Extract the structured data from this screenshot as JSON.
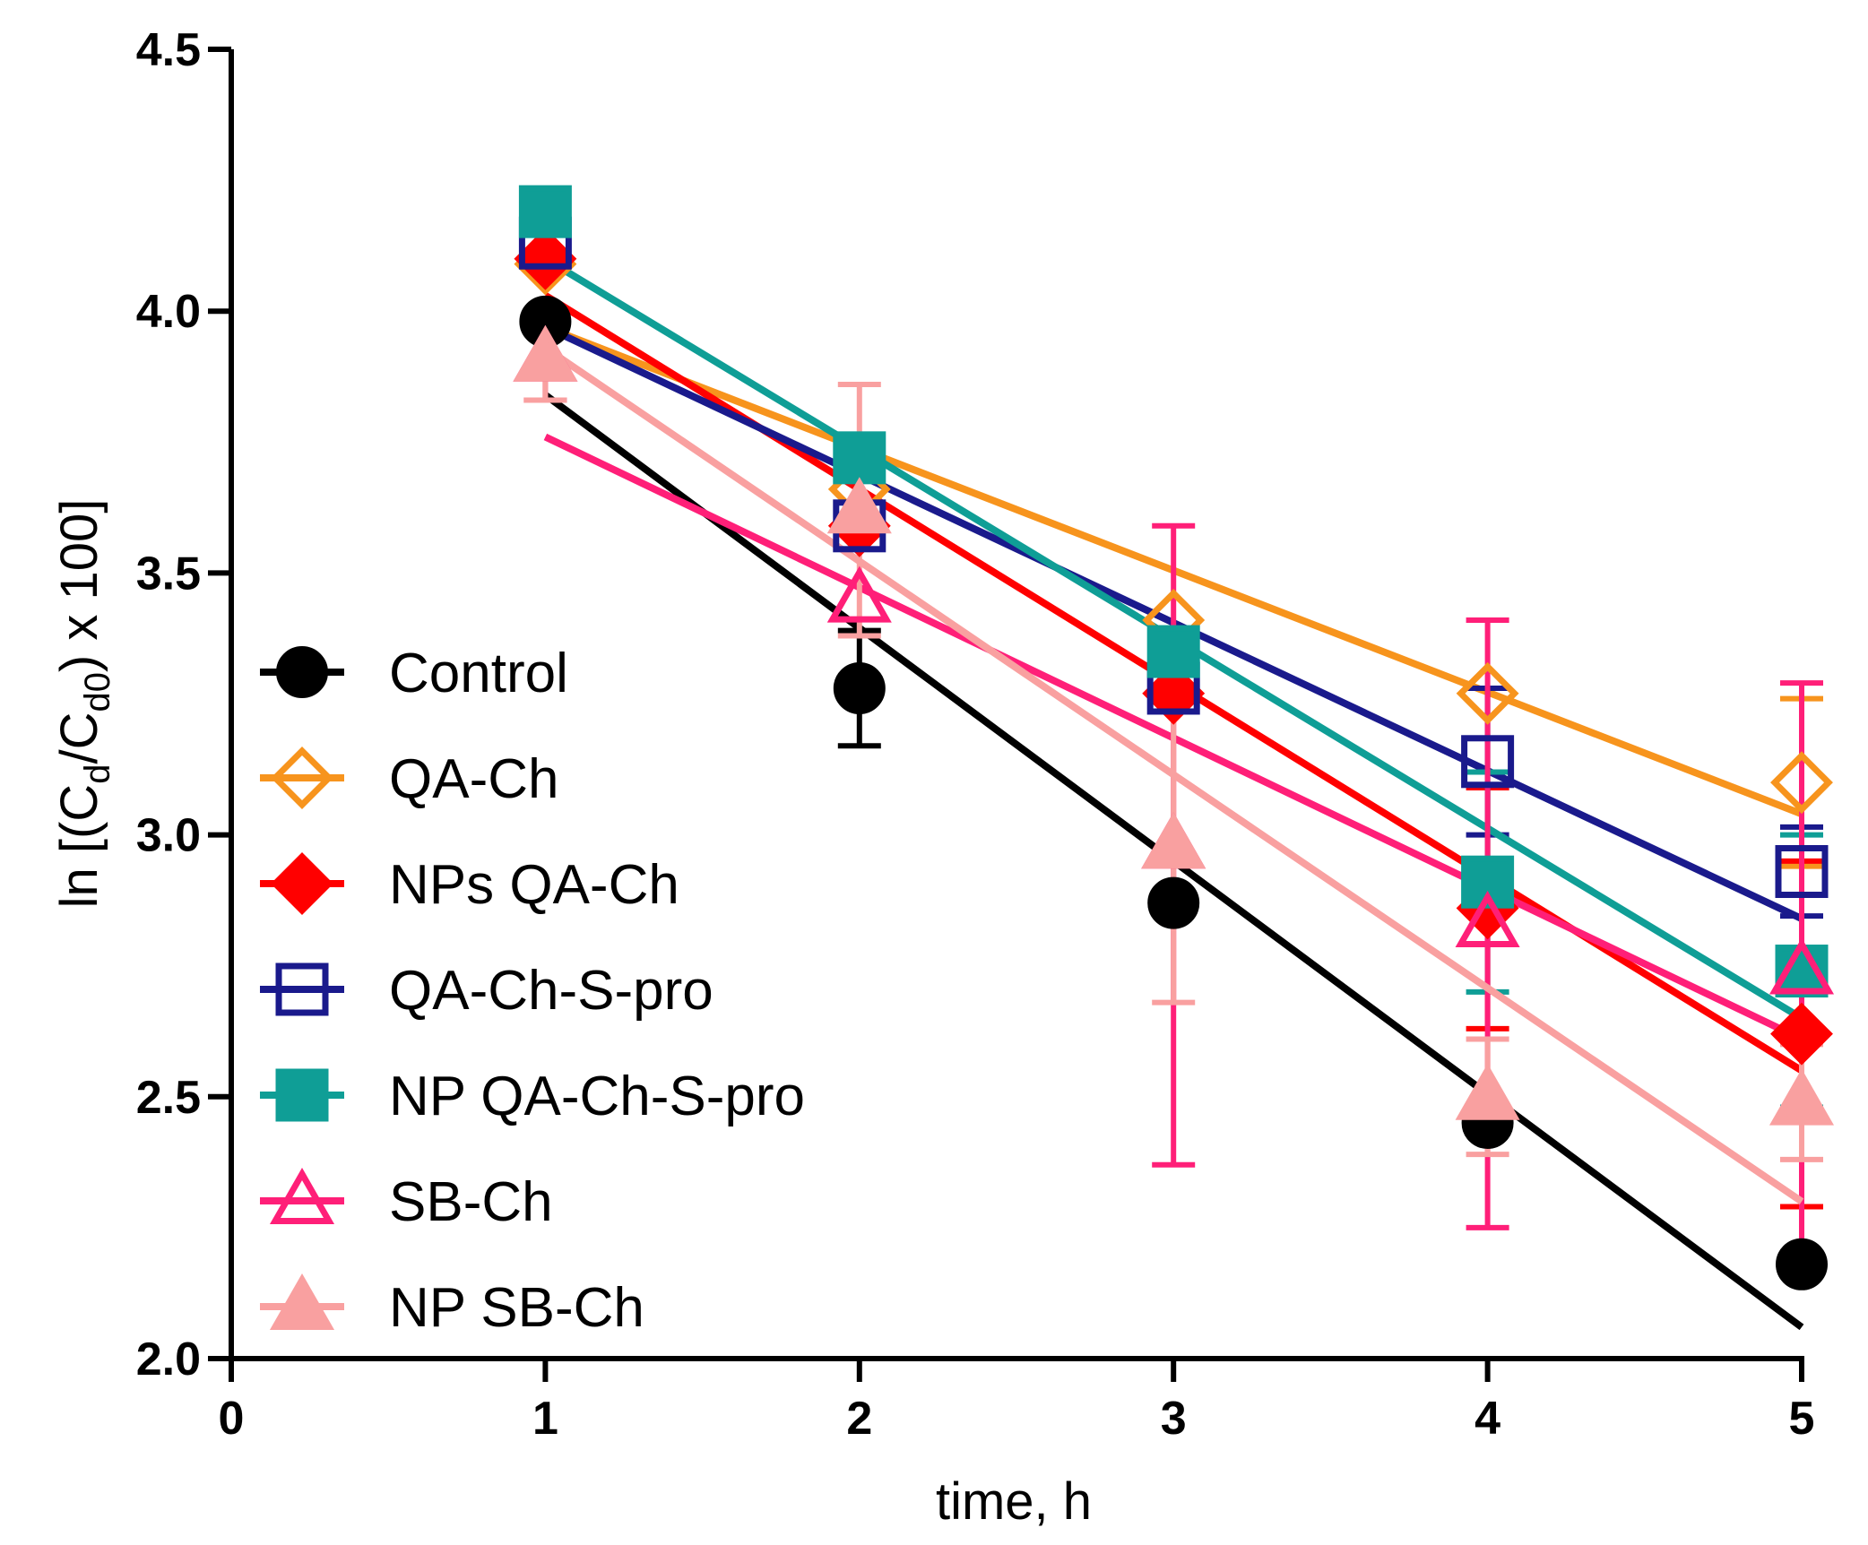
{
  "chart_data": {
    "type": "line",
    "title": "",
    "xlabel": "time, h",
    "ylabel_main": "ln [(C",
    "ylabel_sub1": "d",
    "ylabel_mid": "/C",
    "ylabel_sub2": "d0",
    "ylabel_end": ") x 100]",
    "xlim": [
      0,
      5
    ],
    "ylim": [
      2.0,
      4.5
    ],
    "x_ticks": [
      0,
      1,
      2,
      3,
      4,
      5
    ],
    "x_tick_labels": [
      "0",
      "1",
      "2",
      "3",
      "4",
      "5"
    ],
    "y_ticks": [
      2.0,
      2.5,
      3.0,
      3.5,
      4.0,
      4.5
    ],
    "y_tick_labels": [
      "2.0",
      "2.5",
      "3.0",
      "3.5",
      "4.0",
      "4.5"
    ],
    "x": [
      1,
      2,
      3,
      4,
      5
    ],
    "legend_position": "left",
    "series": [
      {
        "name": "Control",
        "color": "#000000",
        "marker": "circle-filled",
        "values": [
          3.98,
          3.28,
          2.87,
          2.45,
          2.18
        ],
        "errors": [
          0,
          0.11,
          0,
          0,
          0
        ],
        "fit": [
          3.84,
          2.06
        ]
      },
      {
        "name": "QA-Ch",
        "color": "#F7941D",
        "marker": "diamond-open",
        "values": [
          4.09,
          3.66,
          3.41,
          3.27,
          3.1
        ],
        "errors": [
          0,
          0,
          0,
          0,
          0.16
        ],
        "fit": [
          3.97,
          3.04
        ]
      },
      {
        "name": "NPs QA-Ch",
        "color": "#FF0000",
        "marker": "diamond-filled",
        "values": [
          4.1,
          3.59,
          3.27,
          2.86,
          2.62
        ],
        "errors": [
          0,
          0,
          0,
          0.23,
          0.33
        ],
        "fit": [
          4.03,
          2.55
        ]
      },
      {
        "name": "QA-Ch-S-pro",
        "color": "#1A1A8C",
        "marker": "square-open",
        "values": [
          4.13,
          3.59,
          3.28,
          3.14,
          2.93
        ],
        "errors": [
          0,
          0,
          0,
          0.14,
          0.085
        ],
        "fit": [
          3.97,
          2.84
        ]
      },
      {
        "name": "NP QA-Ch-S-pro",
        "color": "#0F9E96",
        "marker": "square-filled",
        "values": [
          4.19,
          3.72,
          3.35,
          2.91,
          2.74
        ],
        "errors": [
          0,
          0,
          0,
          0.21,
          0.26
        ],
        "fit": [
          4.1,
          2.65
        ]
      },
      {
        "name": "SB-Ch",
        "color": "#FF1F78",
        "marker": "triangle-open",
        "values": [
          3.91,
          3.45,
          2.98,
          2.83,
          2.74
        ],
        "errors": [
          0.08,
          0,
          0.61,
          0.58,
          0.55
        ],
        "fit": [
          3.76,
          2.61
        ]
      },
      {
        "name": "NP SB-Ch",
        "color": "#F9A0A0",
        "marker": "triangle-filled",
        "values": [
          3.91,
          3.62,
          2.98,
          2.5,
          2.49
        ],
        "errors": [
          0.08,
          0.24,
          0.3,
          0.11,
          0.11
        ],
        "fit": [
          3.93,
          2.3
        ]
      }
    ]
  }
}
